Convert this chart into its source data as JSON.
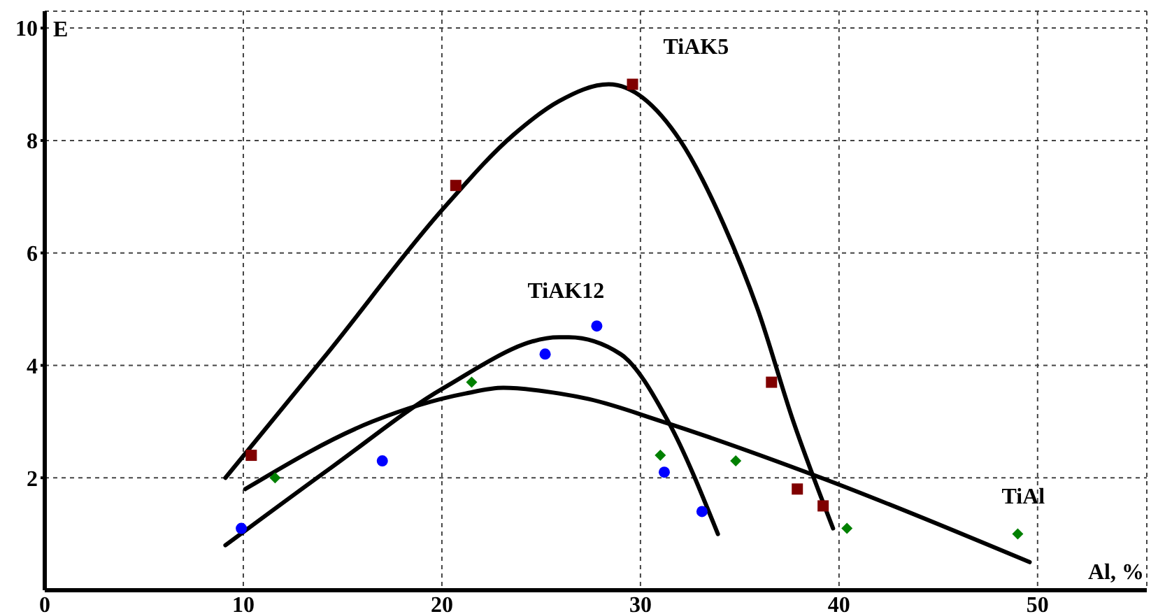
{
  "chart_data": {
    "type": "scatter",
    "xlabel": "Al, %",
    "ylabel": "E",
    "xlim": [
      0,
      55.5
    ],
    "ylim": [
      0,
      10.3
    ],
    "xticks": [
      0,
      10,
      20,
      30,
      40,
      50
    ],
    "yticks": [
      2,
      4,
      6,
      8,
      10
    ],
    "grid": true,
    "series": [
      {
        "name": "TiAK5",
        "color": "#800000",
        "marker": "square",
        "x": [
          10.4,
          20.7,
          29.6,
          36.6,
          37.9,
          39.2
        ],
        "values": [
          2.4,
          7.2,
          9.0,
          3.7,
          1.8,
          1.5
        ]
      },
      {
        "type": "line",
        "color": "#000000",
        "marker": "none",
        "line_style": "solid",
        "x": [
          9.1,
          14.2,
          20.1,
          23.6,
          25.9,
          28.4,
          32.0,
          34.2,
          35.9,
          37.7,
          39.7
        ],
        "values": [
          2.0,
          4.2,
          6.8,
          8.1,
          8.7,
          9.0,
          8.0,
          6.5,
          5.0,
          3.0,
          1.1
        ]
      },
      {
        "name": "TiAK12",
        "color": "#0000ff",
        "marker": "circle",
        "x": [
          9.9,
          17.0,
          25.2,
          27.8,
          31.2,
          33.1
        ],
        "values": [
          1.1,
          2.3,
          4.2,
          4.7,
          2.1,
          1.4
        ]
      },
      {
        "type": "line",
        "color": "#000000",
        "marker": "none",
        "line_style": "solid",
        "x": [
          9.1,
          14.5,
          20.1,
          25.9,
          26.4,
          29.0,
          31.4,
          33.9
        ],
        "values": [
          0.8,
          2.2,
          3.6,
          4.5,
          4.5,
          4.2,
          3.0,
          1.0
        ]
      },
      {
        "name": "TiAl",
        "color": "#008000",
        "marker": "diamond",
        "x": [
          11.6,
          21.5,
          31.0,
          34.8,
          40.4,
          49.0
        ],
        "values": [
          2.0,
          3.7,
          2.4,
          2.3,
          1.1,
          1.0
        ]
      },
      {
        "type": "line",
        "color": "#000000",
        "marker": "none",
        "line_style": "solid",
        "x": [
          10.1,
          16.5,
          21.2,
          23.1,
          25.9,
          27.4,
          31.1,
          39.1,
          49.6
        ],
        "values": [
          1.8,
          3.0,
          3.5,
          3.6,
          3.5,
          3.4,
          3.0,
          2.0,
          0.5
        ]
      }
    ]
  }
}
